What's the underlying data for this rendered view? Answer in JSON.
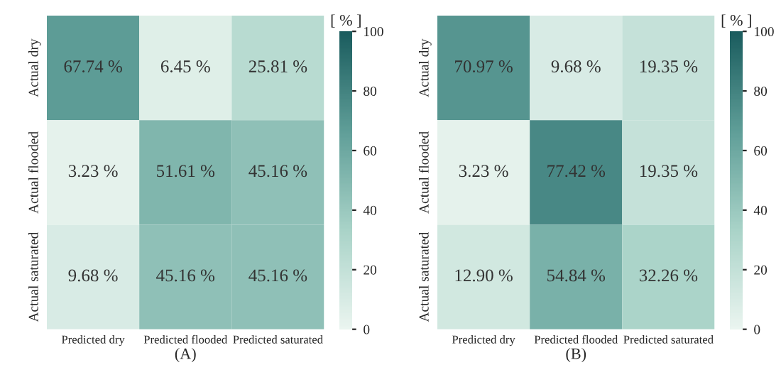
{
  "chart_data": [
    {
      "type": "heatmap",
      "xlabel": "(A)",
      "clabel": "[ % ]",
      "categories": [
        "Predicted dry",
        "Predicted flooded",
        "Predicted saturated"
      ],
      "y_categories": [
        "Actual dry",
        "Actual flooded",
        "Actual saturated"
      ],
      "cells": [
        [
          67.74,
          6.45,
          25.81
        ],
        [
          3.23,
          51.61,
          45.16
        ],
        [
          9.68,
          45.16,
          45.16
        ]
      ],
      "cell_labels": [
        [
          "67.74 %",
          "6.45 %",
          "25.81 %"
        ],
        [
          "3.23 %",
          "51.61 %",
          "45.16 %"
        ],
        [
          "9.68 %",
          "45.16 %",
          "45.16 %"
        ]
      ],
      "clim": [
        0,
        100
      ],
      "cticks": [
        0,
        20,
        40,
        60,
        80,
        100
      ]
    },
    {
      "type": "heatmap",
      "xlabel": "(B)",
      "clabel": "[ % ]",
      "categories": [
        "Predicted dry",
        "Predicted flooded",
        "Predicted saturated"
      ],
      "y_categories": [
        "Actual dry",
        "Actual flooded",
        "Actual saturated"
      ],
      "cells": [
        [
          70.97,
          9.68,
          19.35
        ],
        [
          3.23,
          77.42,
          19.35
        ],
        [
          12.9,
          54.84,
          32.26
        ]
      ],
      "cell_labels": [
        [
          "70.97 %",
          "9.68 %",
          "19.35 %"
        ],
        [
          "3.23 %",
          "77.42 %",
          "19.35 %"
        ],
        [
          "12.90 %",
          "54.84 %",
          "32.26 %"
        ]
      ],
      "clim": [
        0,
        100
      ],
      "cticks": [
        0,
        20,
        40,
        60,
        80,
        100
      ]
    }
  ]
}
